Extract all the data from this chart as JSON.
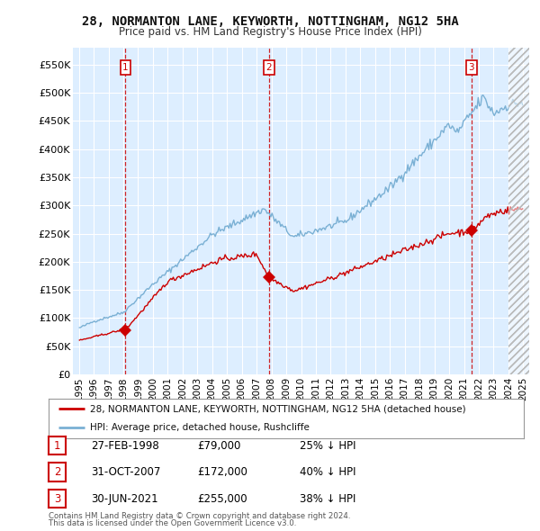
{
  "title": "28, NORMANTON LANE, KEYWORTH, NOTTINGHAM, NG12 5HA",
  "subtitle": "Price paid vs. HM Land Registry's House Price Index (HPI)",
  "ylabel_ticks": [
    "£0",
    "£50K",
    "£100K",
    "£150K",
    "£200K",
    "£250K",
    "£300K",
    "£350K",
    "£400K",
    "£450K",
    "£500K",
    "£550K"
  ],
  "ytick_values": [
    0,
    50000,
    100000,
    150000,
    200000,
    250000,
    300000,
    350000,
    400000,
    450000,
    500000,
    550000
  ],
  "ylim": [
    0,
    580000
  ],
  "background_color": "#ffffff",
  "plot_bg_color": "#ddeeff",
  "grid_color": "#ffffff",
  "sale_dates_num": [
    1998.15,
    2007.83,
    2021.5
  ],
  "sale_prices": [
    79000,
    172000,
    255000
  ],
  "sale_labels": [
    "1",
    "2",
    "3"
  ],
  "sale_info": [
    {
      "label": "1",
      "date": "27-FEB-1998",
      "price": "£79,000",
      "hpi": "25% ↓ HPI"
    },
    {
      "label": "2",
      "date": "31-OCT-2007",
      "price": "£172,000",
      "hpi": "40% ↓ HPI"
    },
    {
      "label": "3",
      "date": "30-JUN-2021",
      "price": "£255,000",
      "hpi": "38% ↓ HPI"
    }
  ],
  "legend_line1": "28, NORMANTON LANE, KEYWORTH, NOTTINGHAM, NG12 5HA (detached house)",
  "legend_line2": "HPI: Average price, detached house, Rushcliffe",
  "footer1": "Contains HM Land Registry data © Crown copyright and database right 2024.",
  "footer2": "This data is licensed under the Open Government Licence v3.0.",
  "sale_line_color": "#cc0000",
  "hpi_line_color": "#7ab0d4",
  "sale_marker_color": "#cc0000",
  "vline_color": "#cc0000",
  "box_color": "#cc0000",
  "hatch_start": 2024.0,
  "xlim_left": 1994.6,
  "xlim_right": 2025.4
}
